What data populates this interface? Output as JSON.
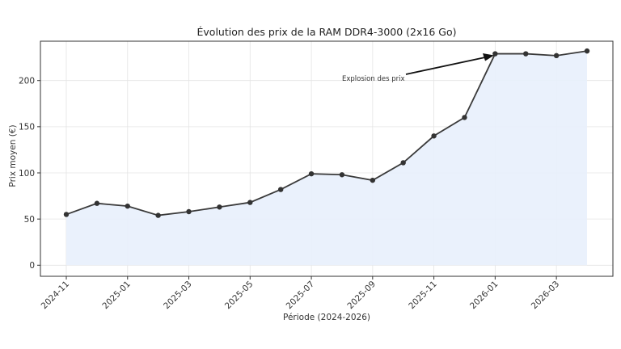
{
  "chart_data": {
    "type": "line",
    "title": "Évolution des prix de la RAM DDR4-3000 (2x16 Go)",
    "xlabel": "Période (2024-2026)",
    "ylabel": "Prix moyen (€)",
    "x": [
      "2024-11",
      "2024-12",
      "2025-01",
      "2025-02",
      "2025-03",
      "2025-04",
      "2025-05",
      "2025-06",
      "2025-07",
      "2025-08",
      "2025-09",
      "2025-10",
      "2025-11",
      "2025-12",
      "2026-01",
      "2026-02",
      "2026-03",
      "2026-04"
    ],
    "series": [
      {
        "name": "Prix moyen",
        "values": [
          55,
          67,
          64,
          54,
          58,
          63,
          68,
          82,
          99,
          98,
          92,
          111,
          140,
          160,
          229,
          229,
          227,
          232
        ],
        "fill": true
      }
    ],
    "x_ticks": [
      "2024-11",
      "2025-01",
      "2025-03",
      "2025-05",
      "2025-07",
      "2025-09",
      "2025-11",
      "2026-01",
      "2026-03"
    ],
    "y_ticks": [
      0,
      50,
      100,
      150,
      200
    ],
    "ylim": [
      -12,
      248
    ],
    "grid": true,
    "legend": null,
    "annotations": [
      {
        "text": "Explosion des prix",
        "target_x": "2026-01",
        "target_y": 229,
        "arrow": true
      }
    ],
    "colors": {
      "line": "#3a3a3a",
      "marker": "#333333",
      "fill": "#e8f0fc",
      "grid": "#e4e4e4",
      "frame": "#333333"
    }
  }
}
